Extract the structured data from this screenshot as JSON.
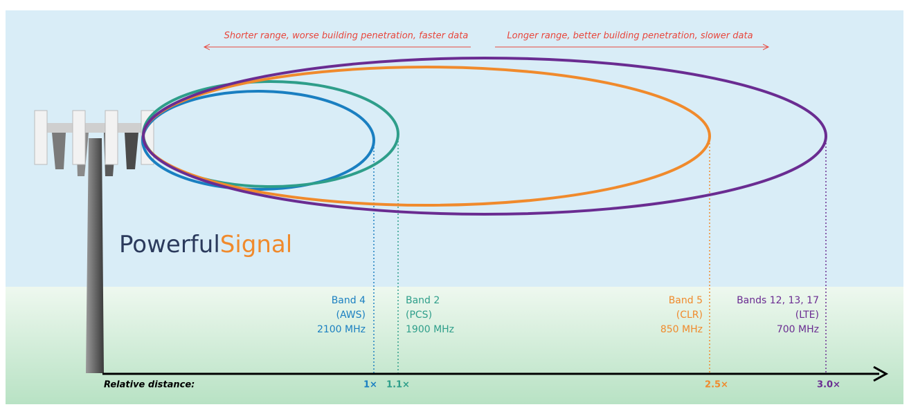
{
  "annotations": {
    "left": "Shorter range, worse building penetration, faster data",
    "right": "Longer range, better building penetration, slower data"
  },
  "brand": {
    "first": "Powerful",
    "second": "Signal"
  },
  "axis_label": "Relative distance:",
  "bands": [
    {
      "name": "Band 4",
      "type": "(AWS)",
      "frequency": "2100 MHz",
      "distance": "1×",
      "color": "#1a7fc1"
    },
    {
      "name": "Band 2",
      "type": "(PCS)",
      "frequency": "1900 MHz",
      "distance": "1.1×",
      "color": "#2e9e8a"
    },
    {
      "name": "Band 5",
      "type": "(CLR)",
      "frequency": "850 MHz",
      "distance": "2.5×",
      "color": "#f08a2c"
    },
    {
      "name": "Bands 12, 13, 17",
      "type": "(LTE)",
      "frequency": "700 MHz",
      "distance": "3.0×",
      "color": "#6a2c91"
    }
  ]
}
